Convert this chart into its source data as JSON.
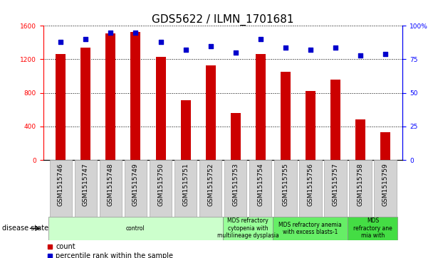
{
  "title": "GDS5622 / ILMN_1701681",
  "samples": [
    "GSM1515746",
    "GSM1515747",
    "GSM1515748",
    "GSM1515749",
    "GSM1515750",
    "GSM1515751",
    "GSM1515752",
    "GSM1515753",
    "GSM1515754",
    "GSM1515755",
    "GSM1515756",
    "GSM1515757",
    "GSM1515758",
    "GSM1515759"
  ],
  "counts": [
    1260,
    1340,
    1510,
    1530,
    1230,
    710,
    1130,
    560,
    1260,
    1050,
    820,
    960,
    480,
    330
  ],
  "percentiles": [
    88,
    90,
    95,
    95,
    88,
    82,
    85,
    80,
    90,
    84,
    82,
    84,
    78,
    79
  ],
  "bar_color": "#cc0000",
  "dot_color": "#0000cc",
  "ylim_left": [
    0,
    1600
  ],
  "ylim_right": [
    0,
    100
  ],
  "yticks_left": [
    0,
    400,
    800,
    1200,
    1600
  ],
  "yticks_right": [
    0,
    25,
    50,
    75,
    100
  ],
  "disease_groups": [
    {
      "label": "control",
      "start": 0,
      "end": 7,
      "color": "#ccffcc"
    },
    {
      "label": "MDS refractory\ncytopenia with\nmultilineage dysplasia",
      "start": 7,
      "end": 9,
      "color": "#99ff99"
    },
    {
      "label": "MDS refractory anemia\nwith excess blasts-1",
      "start": 9,
      "end": 12,
      "color": "#66ee66"
    },
    {
      "label": "MDS\nrefractory ane\nmia with",
      "start": 12,
      "end": 14,
      "color": "#44dd44"
    }
  ],
  "disease_state_label": "disease state",
  "legend_count_label": "count",
  "legend_percentile_label": "percentile rank within the sample",
  "title_fontsize": 11,
  "tick_fontsize": 6.5,
  "label_fontsize": 7.5,
  "bar_width": 0.4
}
